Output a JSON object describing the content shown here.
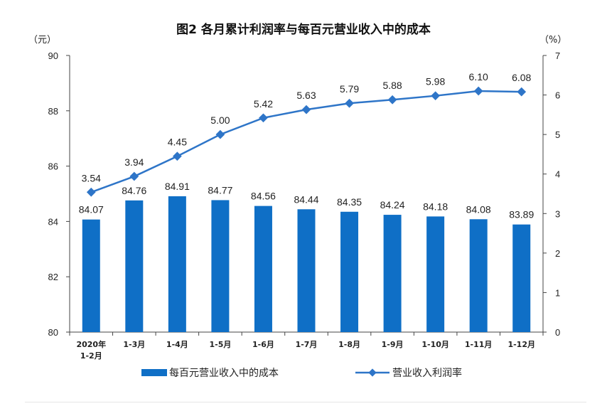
{
  "chart_data": {
    "type": "bar",
    "title": "图2 各月累计利润率与每百元营业收入中的成本",
    "categories": [
      "2020年\n1-2月",
      "1-3月",
      "1-4月",
      "1-5月",
      "1-6月",
      "1-7月",
      "1-8月",
      "1-9月",
      "1-10月",
      "1-11月",
      "1-12月"
    ],
    "left_axis": {
      "unit": "（元）",
      "ylim": [
        80,
        90
      ],
      "ticks": [
        "80",
        "82",
        "84",
        "86",
        "88",
        "90"
      ]
    },
    "right_axis": {
      "unit": "（%）",
      "ylim": [
        0,
        7
      ],
      "ticks": [
        "0",
        "1",
        "2",
        "3",
        "4",
        "5",
        "6",
        "7"
      ]
    },
    "series": [
      {
        "name": "每百元营业收入中的成本",
        "type": "bar",
        "axis": "left",
        "color": "#0f6fc6",
        "values": [
          84.07,
          84.76,
          84.91,
          84.77,
          84.56,
          84.44,
          84.35,
          84.24,
          84.18,
          84.08,
          83.89
        ],
        "labels": [
          "84.07",
          "84.76",
          "84.91",
          "84.77",
          "84.56",
          "84.44",
          "84.35",
          "84.24",
          "84.18",
          "84.08",
          "83.89"
        ]
      },
      {
        "name": "营业收入利润率",
        "type": "line",
        "axis": "right",
        "color": "#2e75c8",
        "values": [
          3.54,
          3.94,
          4.45,
          5.0,
          5.42,
          5.63,
          5.79,
          5.88,
          5.98,
          6.1,
          6.08
        ],
        "labels": [
          "3.54",
          "3.94",
          "4.45",
          "5.00",
          "5.42",
          "5.63",
          "5.79",
          "5.88",
          "5.98",
          "6.10",
          "6.08"
        ]
      }
    ],
    "legend": "bottom",
    "grid": false
  }
}
